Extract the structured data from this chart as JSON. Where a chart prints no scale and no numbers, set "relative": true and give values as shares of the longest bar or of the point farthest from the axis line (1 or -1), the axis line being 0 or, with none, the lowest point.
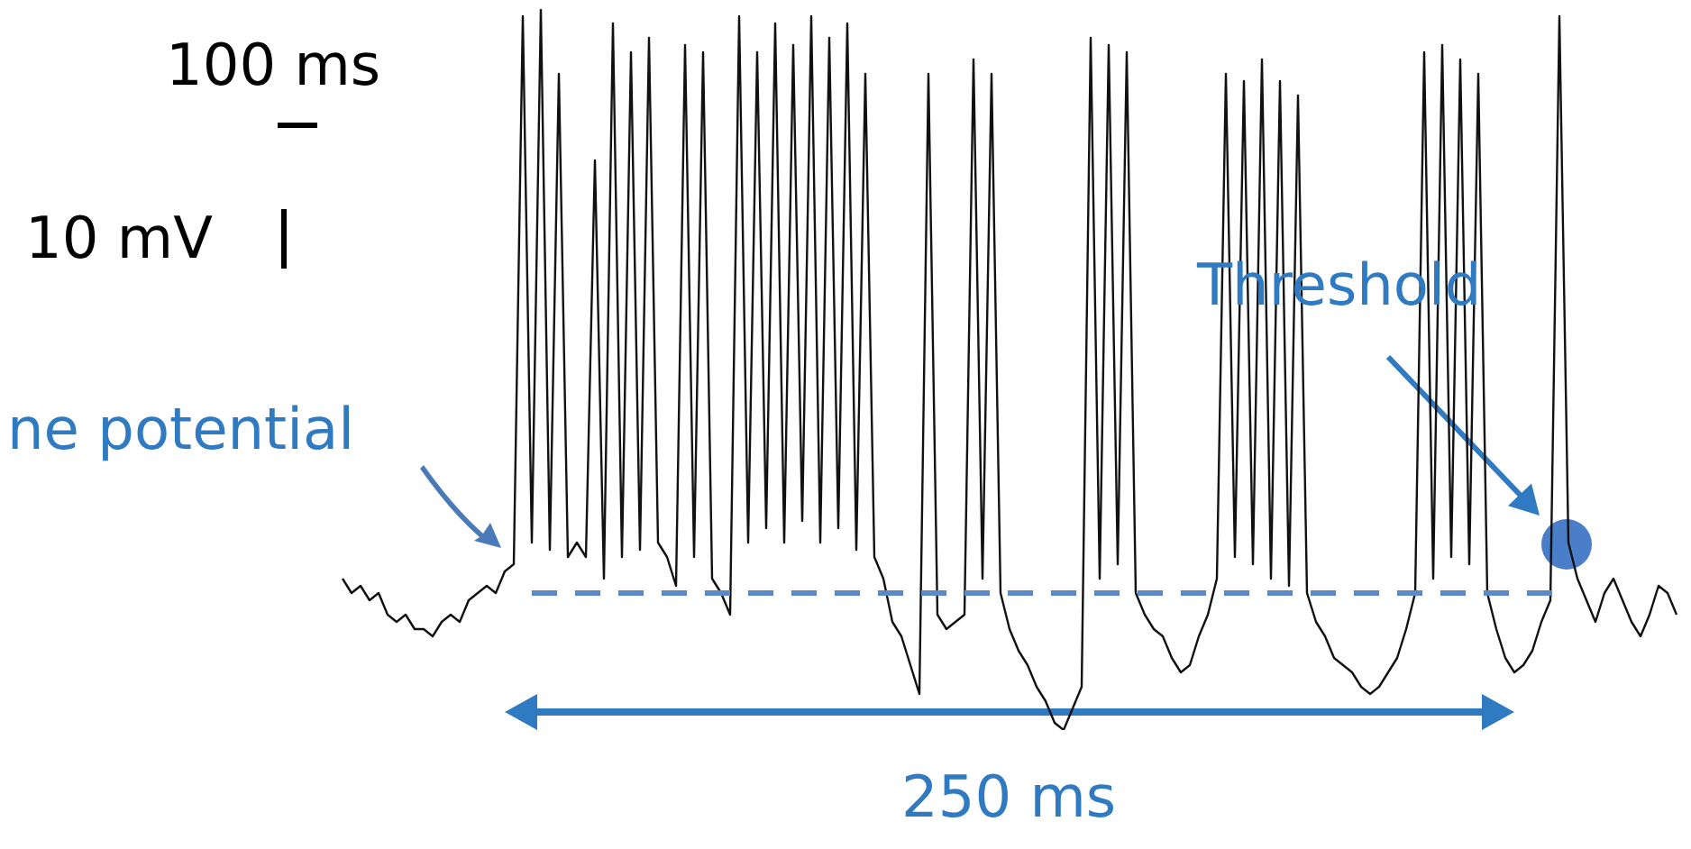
{
  "chart_data": {
    "type": "line",
    "relative": true,
    "color": "#111111",
    "categories": [
      null,
      null,
      null,
      null,
      null,
      null,
      null,
      null,
      null,
      null,
      null,
      null,
      null,
      null,
      null,
      null,
      null,
      null,
      null,
      null,
      null,
      null,
      null,
      null,
      null,
      null,
      null,
      null,
      null,
      null,
      null,
      null,
      null,
      null,
      null,
      null,
      null,
      null,
      null,
      null,
      null,
      null,
      null,
      null,
      null,
      null,
      null,
      null,
      null,
      null,
      null,
      null,
      null,
      null,
      null,
      null,
      null,
      null,
      null,
      null,
      null,
      null,
      null,
      null,
      null,
      null,
      null,
      null,
      null,
      null,
      null,
      null,
      null,
      null,
      null,
      null,
      null,
      null,
      null,
      null,
      null,
      null,
      null,
      null,
      null,
      null,
      null,
      null,
      null,
      null,
      null,
      null,
      null,
      null,
      null,
      null,
      null,
      null,
      null,
      null,
      null,
      null,
      null,
      null,
      null,
      null,
      null,
      null,
      null,
      null,
      null,
      null,
      null,
      null,
      null,
      null,
      null,
      null,
      null,
      null,
      null,
      null,
      null,
      null,
      null,
      null,
      null,
      null,
      null,
      null,
      null,
      null,
      null,
      null,
      null,
      null,
      null,
      null,
      null,
      null,
      null,
      null,
      null,
      null,
      null,
      null,
      null,
      null,
      null
    ],
    "values": [
      0.21,
      0.19,
      0.2,
      0.18,
      0.19,
      0.16,
      0.15,
      0.16,
      0.14,
      0.14,
      0.13,
      0.15,
      0.16,
      0.15,
      0.18,
      0.19,
      0.2,
      0.19,
      0.22,
      0.23,
      0.99,
      0.26,
      1,
      0.25,
      0.91,
      0.24,
      0.26,
      0.24,
      0.79,
      0.21,
      0.98,
      0.24,
      0.94,
      0.25,
      0.96,
      0.26,
      0.24,
      0.2,
      0.95,
      0.24,
      0.94,
      0.21,
      0.19,
      0.16,
      0.99,
      0.26,
      0.94,
      0.28,
      0.98,
      0.26,
      0.95,
      0.29,
      0.99,
      0.26,
      0.96,
      0.28,
      0.98,
      0.25,
      0.91,
      0.24,
      0.21,
      0.15,
      0.13,
      0.09,
      0.05,
      0.91,
      0.16,
      0.14,
      0.15,
      0.16,
      0.93,
      0.21,
      0.91,
      0.19,
      0.14,
      0.11,
      0.09,
      0.06,
      0.04,
      0.01,
      0,
      0.03,
      0.06,
      0.96,
      0.21,
      0.95,
      0.23,
      0.94,
      0.19,
      0.16,
      0.14,
      0.13,
      0.1,
      0.08,
      0.09,
      0.13,
      0.16,
      0.21,
      0.91,
      0.24,
      0.9,
      0.23,
      0.93,
      0.21,
      0.9,
      0.2,
      0.88,
      0.19,
      0.15,
      0.13,
      0.1,
      0.09,
      0.08,
      0.06,
      0.05,
      0.06,
      0.08,
      0.1,
      0.14,
      0.19,
      0.94,
      0.21,
      0.95,
      0.24,
      0.93,
      0.23,
      0.91,
      0.19,
      0.14,
      0.1,
      0.08,
      0.09,
      0.11,
      0.15,
      0.18,
      0.99,
      0.26,
      0.21,
      0.18,
      0.15,
      0.19,
      0.21,
      0.18,
      0.15,
      0.13,
      0.16,
      0.2,
      0.19,
      0.16
    ],
    "ref_lines": [
      {
        "axis": "y",
        "value": 0.19,
        "color": "#5b8ac6",
        "line_style": "dashed"
      }
    ],
    "annotations": [
      "100 ms",
      "10 mV",
      "Threshold",
      "ne potential",
      "250 ms"
    ]
  }
}
